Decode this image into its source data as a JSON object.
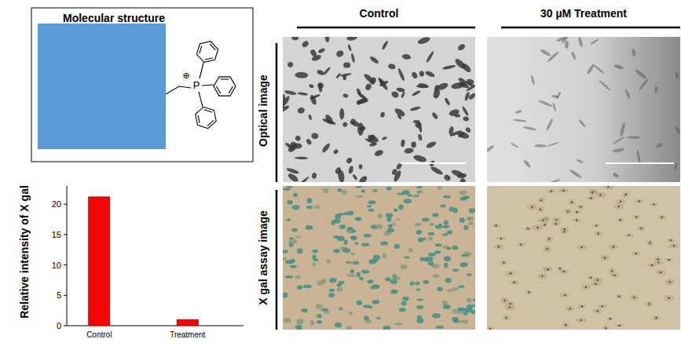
{
  "molecule": {
    "title": "Molecular structure",
    "atom": "P",
    "charge": "⊕"
  },
  "panels": {
    "columns": [
      "Control",
      "30 µM Treatment"
    ],
    "rows": [
      "Optical image",
      "X gal assay image"
    ]
  },
  "chart_data": {
    "type": "bar",
    "categories": [
      "Control",
      "Treatment"
    ],
    "values": [
      21.2,
      1.0
    ],
    "color": "#ff0000",
    "y_label": "Relative intensity of X gal",
    "ylim": [
      0,
      23
    ],
    "yticks": [
      0,
      5,
      10,
      15,
      20
    ]
  }
}
